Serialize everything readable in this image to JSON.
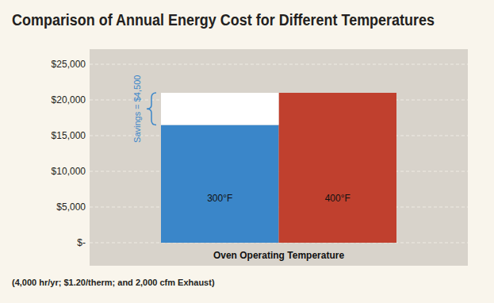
{
  "chart_data": {
    "type": "bar",
    "title": "Comparison of Annual Energy Cost for Different Temperatures",
    "categories": [
      "300°F",
      "400°F"
    ],
    "values": [
      16500,
      21000
    ],
    "colors": [
      "#3a86c9",
      "#c0402e"
    ],
    "xlabel": "Oven Operating Temperature",
    "footnote": "(4,000 hr/yr; $1.20/therm; and 2,000 cfm Exhaust)",
    "savings": {
      "value": 4500,
      "label": "Savings = $4,500"
    },
    "ylim": [
      0,
      25000
    ],
    "yticks": [
      {
        "value": 0,
        "label": "$-"
      },
      {
        "value": 5000,
        "label": "$5,000"
      },
      {
        "value": 10000,
        "label": "$10,000"
      },
      {
        "value": 15000,
        "label": "$15,000"
      },
      {
        "value": 20000,
        "label": "$20,000"
      },
      {
        "value": 25000,
        "label": "$25,000"
      }
    ],
    "grid": true
  }
}
